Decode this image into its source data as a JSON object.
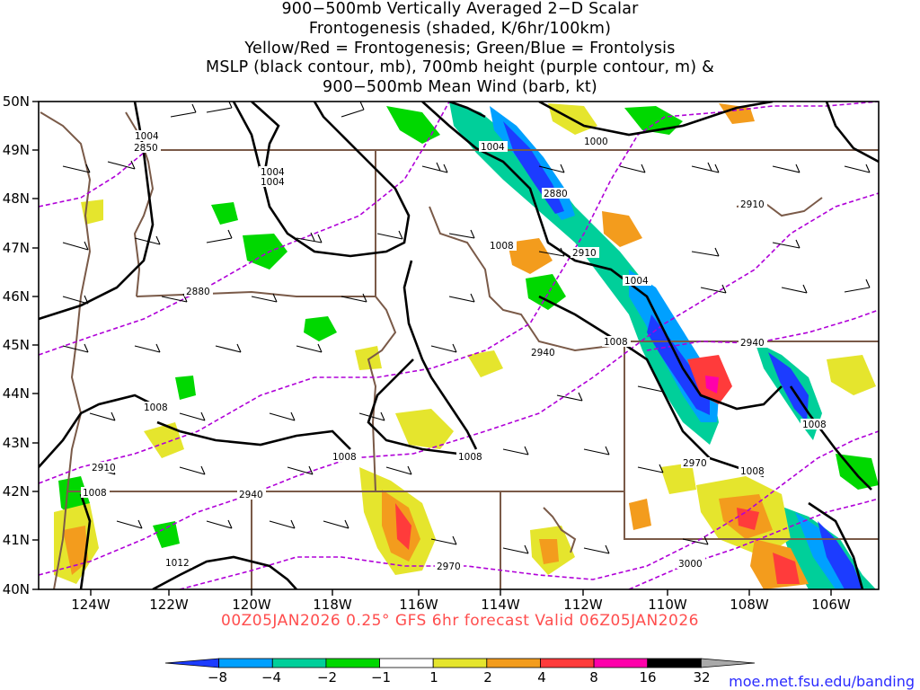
{
  "title": {
    "line1": "900−500mb Vertically Averaged 2−D Scalar",
    "line2": "Frontogenesis (shaded, K/6hr/100km)",
    "line3": "Yellow/Red = Frontogenesis;  Green/Blue = Frontolysis",
    "line4": "MSLP (black contour, mb), 700mb height (purple contour, m) &",
    "line5": "900−500mb Mean Wind (barb, kt)"
  },
  "axes": {
    "lat_labels": [
      "50N",
      "49N",
      "48N",
      "47N",
      "46N",
      "45N",
      "44N",
      "43N",
      "42N",
      "41N",
      "40N"
    ],
    "lon_labels": [
      "124W",
      "122W",
      "120W",
      "118W",
      "116W",
      "114W",
      "112W",
      "110W",
      "108W",
      "106W"
    ]
  },
  "contour_labels": {
    "mslp": [
      "1004",
      "1004",
      "1004",
      "1000",
      "1008",
      "1004",
      "1008",
      "1008",
      "1008",
      "1008",
      "1008",
      "1008",
      "1004",
      "1008",
      "1012"
    ],
    "height": [
      "2850",
      "2880",
      "2910",
      "2880",
      "2910",
      "2940",
      "2940",
      "2970",
      "2910",
      "2940",
      "2970",
      "3000"
    ]
  },
  "valid_time": "00Z05JAN2026 0.25° GFS 6hr forecast Valid 06Z05JAN2026",
  "colorbar": {
    "labels": [
      "−8",
      "−4",
      "−2",
      "−1",
      "1",
      "2",
      "4",
      "8",
      "16",
      "32"
    ],
    "colors": [
      "#1c3cff",
      "#00a0ff",
      "#00cf9a",
      "#00d800",
      "#ffffff",
      "#e5e52d",
      "#f39c1d",
      "#ff3b3b",
      "#ff00aa",
      "#000000",
      "#a9a9a9"
    ]
  },
  "credit": "moe.met.fsu.edu/banding",
  "colors": {
    "mslp_contour": "#000000",
    "height_contour": "#b000d8",
    "borders": "#7a5a48",
    "frame": "#000000",
    "valid_text": "#ff4d4d",
    "credit_text": "#2a2aff"
  }
}
